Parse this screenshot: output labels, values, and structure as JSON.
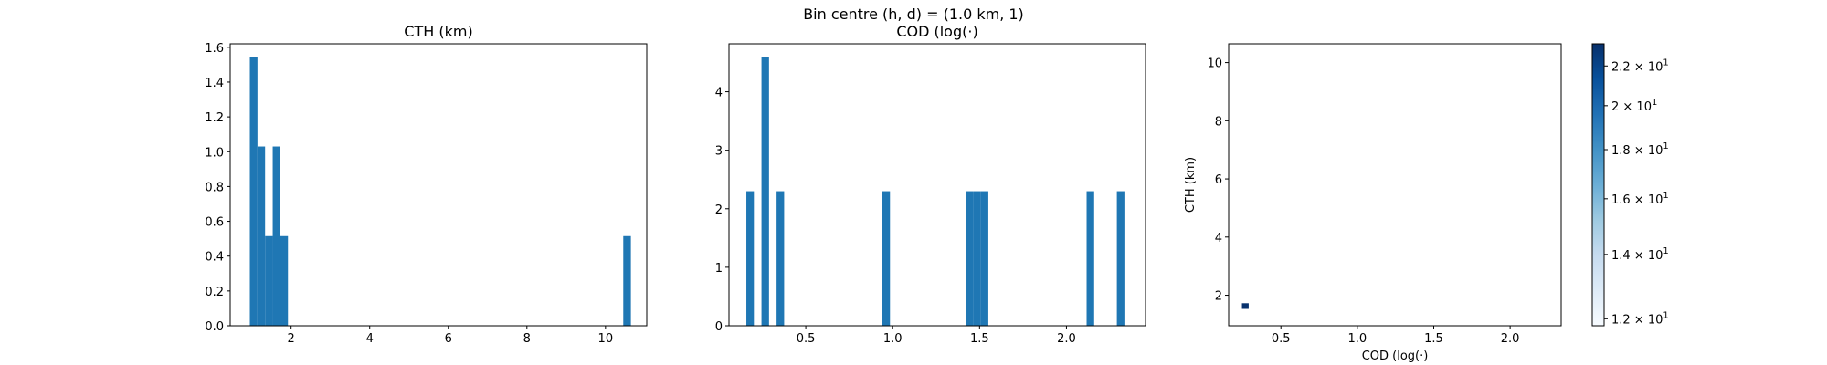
{
  "suptitle": "Bin centre (h, d) = (1.0 km, 1)",
  "colors": {
    "bar": "#1f77b4",
    "axes": "#000000",
    "bg": "#ffffff"
  },
  "chart_data": [
    {
      "type": "bar",
      "title": "CTH (km)",
      "xlabel": "",
      "ylabel": "",
      "xlim": [
        0.45,
        11.05
      ],
      "ylim": [
        0,
        1.62
      ],
      "xticks": [
        2,
        4,
        6,
        8,
        10
      ],
      "xtick_labels": [
        "2",
        "4",
        "6",
        "8",
        "10"
      ],
      "yticks": [
        0.0,
        0.2,
        0.4,
        0.6,
        0.8,
        1.0,
        1.2,
        1.4,
        1.6
      ],
      "ytick_labels": [
        "0.0",
        "0.2",
        "0.4",
        "0.6",
        "0.8",
        "1.0",
        "1.2",
        "1.4",
        "1.6"
      ],
      "bin_width": 0.194,
      "bins": [
        {
          "x0": 0.95,
          "value": 1.545
        },
        {
          "x0": 1.144,
          "value": 1.03
        },
        {
          "x0": 1.338,
          "value": 0.515
        },
        {
          "x0": 1.532,
          "value": 1.03
        },
        {
          "x0": 1.726,
          "value": 0.515
        },
        {
          "x0": 10.452,
          "value": 0.515
        }
      ]
    },
    {
      "type": "bar",
      "title": "COD (log(·)",
      "xlabel": "",
      "ylabel": "",
      "xlim": [
        0.058,
        2.455
      ],
      "ylim": [
        0,
        4.82
      ],
      "xticks": [
        0.5,
        1.0,
        1.5,
        2.0
      ],
      "xtick_labels": [
        "0.5",
        "1.0",
        "1.5",
        "2.0"
      ],
      "yticks": [
        0,
        1,
        2,
        3,
        4
      ],
      "ytick_labels": [
        "0",
        "1",
        "2",
        "3",
        "4"
      ],
      "bin_width": 0.0435,
      "bins": [
        {
          "x0": 0.158,
          "value": 2.3
        },
        {
          "x0": 0.245,
          "value": 4.6
        },
        {
          "x0": 0.332,
          "value": 2.3
        },
        {
          "x0": 0.941,
          "value": 2.3
        },
        {
          "x0": 1.42,
          "value": 2.3
        },
        {
          "x0": 1.4635,
          "value": 2.3
        },
        {
          "x0": 1.507,
          "value": 2.3
        },
        {
          "x0": 2.116,
          "value": 2.3
        },
        {
          "x0": 2.29,
          "value": 2.3
        }
      ]
    },
    {
      "type": "heatmap",
      "title": "",
      "xlabel": "COD (log(·)",
      "ylabel": "CTH (km)",
      "xlim": [
        0.158,
        2.334
      ],
      "ylim": [
        0.95,
        10.646
      ],
      "xticks": [
        0.5,
        1.0,
        1.5,
        2.0
      ],
      "xtick_labels": [
        "0.5",
        "1.0",
        "1.5",
        "2.0"
      ],
      "yticks": [
        2,
        4,
        6,
        8,
        10
      ],
      "ytick_labels": [
        "2",
        "4",
        "6",
        "8",
        "10"
      ],
      "cells": [
        {
          "x0": 0.245,
          "x1": 0.289,
          "y0": 1.53,
          "y1": 1.725,
          "value": 23.1
        }
      ],
      "colorbar": {
        "scale": "log",
        "vmin": 11.8,
        "vmax": 23.2,
        "cmap": "Blues",
        "ticks": [
          12,
          14,
          16,
          18,
          20,
          22
        ],
        "tick_labels": [
          {
            "mant": "1.2",
            "exp": "1"
          },
          {
            "mant": "1.4",
            "exp": "1"
          },
          {
            "mant": "1.6",
            "exp": "1"
          },
          {
            "mant": "1.8",
            "exp": "1"
          },
          {
            "mant": "2",
            "exp": "1"
          },
          {
            "mant": "2.2",
            "exp": "1"
          }
        ]
      }
    }
  ]
}
